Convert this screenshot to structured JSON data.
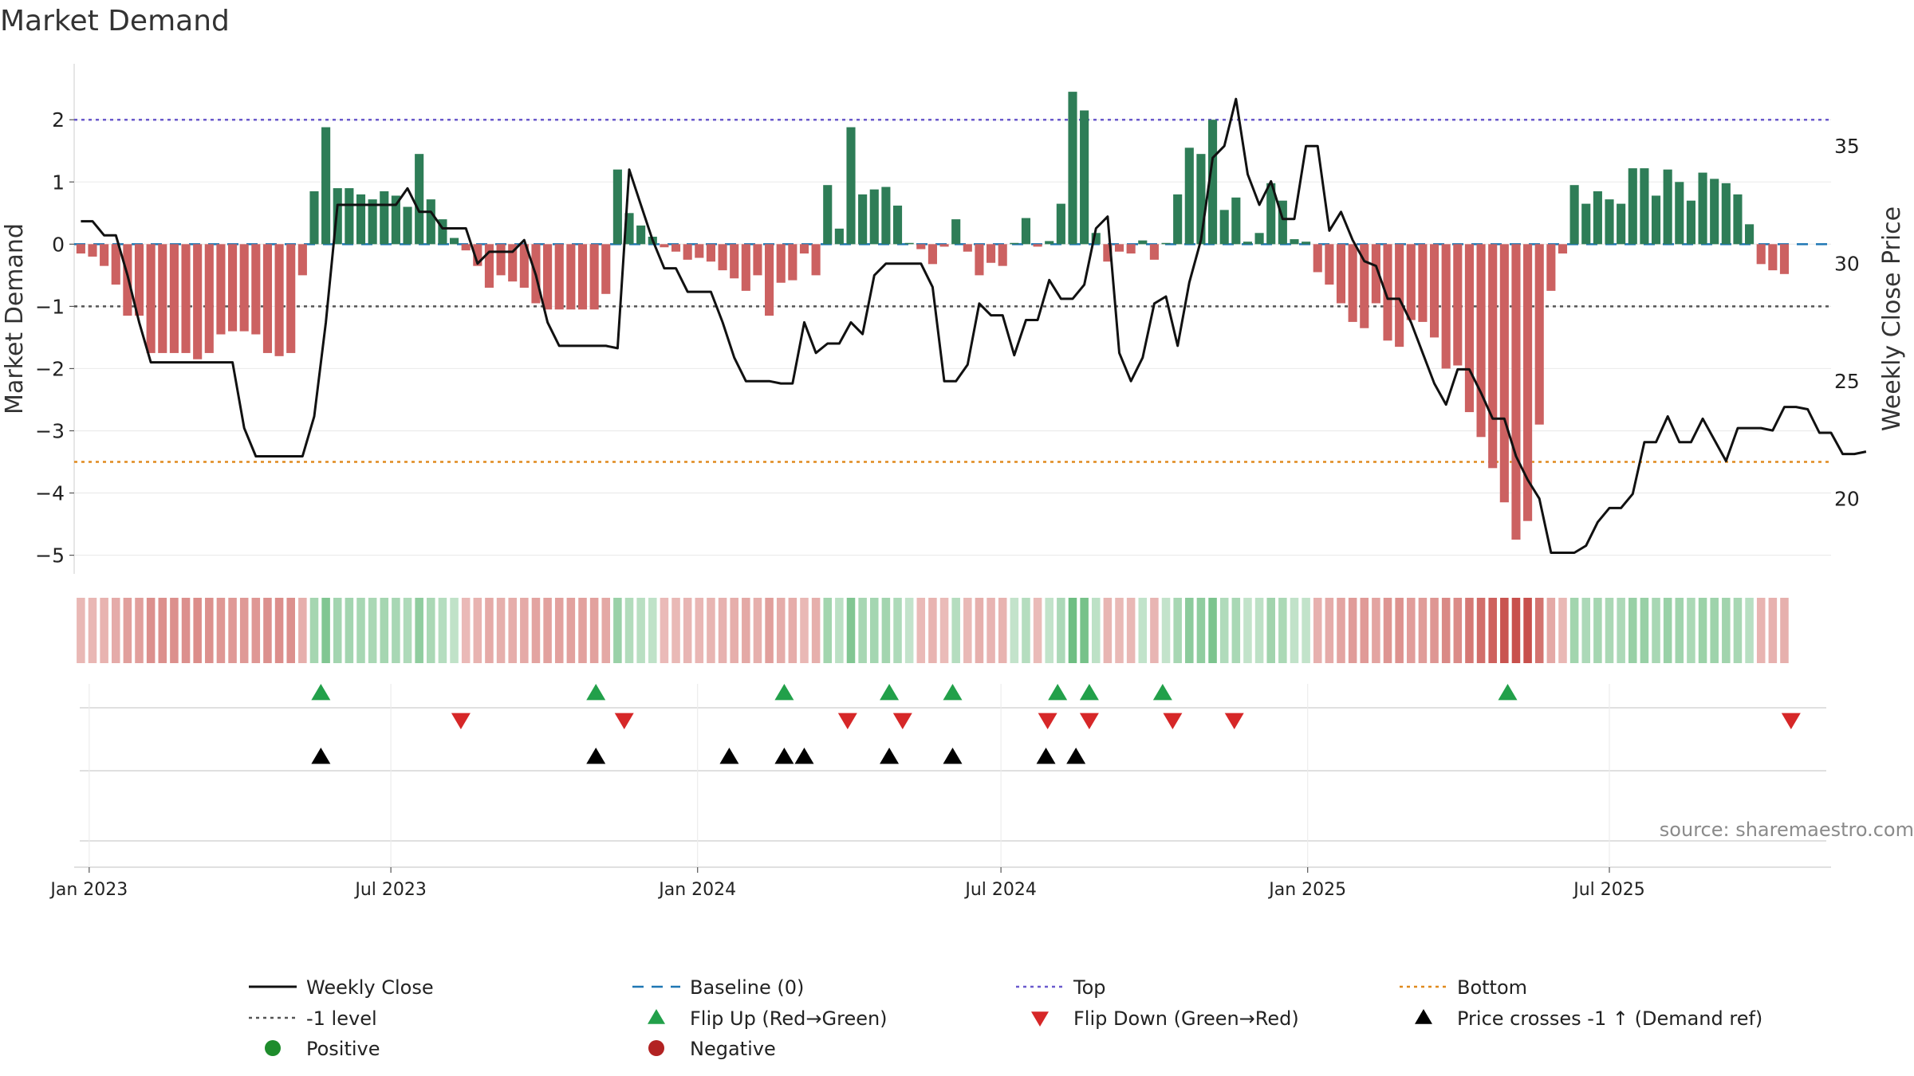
{
  "chart_data": {
    "type": "bar",
    "title": "Market Demand",
    "ylabel": "Market Demand",
    "y2label": "Weekly Close Price",
    "source": "source: sharemaestro.com",
    "ylim": [
      -5.3,
      2.9
    ],
    "y2lim": [
      16.8,
      38.5
    ],
    "yticks": [
      2,
      1,
      0,
      -1,
      -2,
      -3,
      -4,
      -5
    ],
    "ytick_labels": [
      "2",
      "1",
      "0",
      "−1",
      "−2",
      "−3",
      "−4",
      "−5"
    ],
    "y2ticks": [
      35,
      30,
      25,
      20
    ],
    "y2tick_labels": [
      "35",
      "30",
      "25",
      "20"
    ],
    "xticks": [
      {
        "date": "2023-01-01",
        "label": "Jan 2023"
      },
      {
        "date": "2023-07-01",
        "label": "Jul 2023"
      },
      {
        "date": "2024-01-01",
        "label": "Jan 2024"
      },
      {
        "date": "2024-07-01",
        "label": "Jul 2024"
      },
      {
        "date": "2025-01-01",
        "label": "Jan 2025"
      },
      {
        "date": "2025-07-01",
        "label": "Jul 2025"
      }
    ],
    "x_range": [
      "2022-12-23",
      "2025-11-11"
    ],
    "first_week": "2022-12-27",
    "reference_lines": {
      "top": 2.0,
      "bottom": -3.5,
      "minus_one_level": -1.0,
      "baseline": 0
    },
    "colors": {
      "positive": "#2e7d57",
      "negative": "#cc6161",
      "price": "#111111",
      "top": "#6a5acd",
      "bottom": "#e08a1e",
      "minus_one": "#555555",
      "baseline": "#1f77b4",
      "flip_up": "#22a04a",
      "flip_down": "#d62728",
      "price_cross": "#000000",
      "positive_dot": "#1e8c2c",
      "negative_dot": "#b22222"
    },
    "series": [
      {
        "name": "Market Demand",
        "values": [
          -0.15,
          -0.2,
          -0.35,
          -0.65,
          -1.15,
          -1.15,
          -1.75,
          -1.75,
          -1.75,
          -1.75,
          -1.85,
          -1.75,
          -1.45,
          -1.4,
          -1.4,
          -1.45,
          -1.75,
          -1.8,
          -1.75,
          -0.5,
          0.85,
          1.88,
          0.9,
          0.9,
          0.8,
          0.72,
          0.85,
          0.78,
          0.6,
          1.45,
          0.72,
          0.4,
          0.1,
          -0.1,
          -0.35,
          -0.7,
          -0.5,
          -0.6,
          -0.7,
          -0.95,
          -1.05,
          -1.05,
          -1.05,
          -1.05,
          -1.05,
          -0.8,
          1.2,
          0.5,
          0.3,
          0.12,
          -0.05,
          -0.12,
          -0.25,
          -0.22,
          -0.28,
          -0.42,
          -0.55,
          -0.75,
          -0.5,
          -1.15,
          -0.62,
          -0.58,
          -0.15,
          -0.5,
          0.95,
          0.25,
          1.88,
          0.8,
          0.88,
          0.92,
          0.62,
          0.02,
          -0.08,
          -0.32,
          -0.04,
          0.4,
          -0.12,
          -0.5,
          -0.3,
          -0.35,
          0.02,
          0.42,
          -0.04,
          0.05,
          0.65,
          2.45,
          2.15,
          0.18,
          -0.28,
          -0.12,
          -0.15,
          0.06,
          -0.25,
          0.02,
          0.8,
          1.55,
          1.45,
          2.0,
          0.55,
          0.75,
          0.04,
          0.18,
          0.98,
          0.7,
          0.08,
          0.04,
          -0.45,
          -0.65,
          -0.95,
          -1.25,
          -1.35,
          -0.95,
          -1.55,
          -1.65,
          -1.22,
          -1.25,
          -1.5,
          -2.0,
          -1.95,
          -2.7,
          -3.1,
          -3.6,
          -4.15,
          -4.75,
          -4.45,
          -2.9,
          -0.75,
          -0.15,
          0.95,
          0.65,
          0.85,
          0.72,
          0.65,
          1.22,
          1.22,
          0.78,
          1.2,
          1.0,
          0.7,
          1.15,
          1.05,
          0.98,
          0.8,
          0.32,
          -0.32,
          -0.42,
          -0.48
        ]
      },
      {
        "name": "Weekly Close",
        "axis": "right",
        "values": [
          31.8,
          31.8,
          31.2,
          31.2,
          29.5,
          27.5,
          25.8,
          25.8,
          25.8,
          25.8,
          25.8,
          25.8,
          25.8,
          25.8,
          23.0,
          21.8,
          21.8,
          21.8,
          21.8,
          21.8,
          23.5,
          27.5,
          32.5,
          32.5,
          32.5,
          32.5,
          32.5,
          32.5,
          33.2,
          32.2,
          32.2,
          31.5,
          31.5,
          31.5,
          30.0,
          30.5,
          30.5,
          30.5,
          31.0,
          29.5,
          27.5,
          26.5,
          26.5,
          26.5,
          26.5,
          26.5,
          26.4,
          34.0,
          32.5,
          31.0,
          29.8,
          29.8,
          28.8,
          28.8,
          28.8,
          27.5,
          26.0,
          25.0,
          25.0,
          25.0,
          24.9,
          24.9,
          27.5,
          26.2,
          26.6,
          26.6,
          27.5,
          27.0,
          29.5,
          30.0,
          30.0,
          30.0,
          30.0,
          29.0,
          25.0,
          25.0,
          25.7,
          28.3,
          27.8,
          27.8,
          26.1,
          27.6,
          27.6,
          29.3,
          28.5,
          28.5,
          29.1,
          31.5,
          32.0,
          26.2,
          25.0,
          26.0,
          28.3,
          28.6,
          26.5,
          29.2,
          31.0,
          34.5,
          35.0,
          37.0,
          33.8,
          32.5,
          33.5,
          31.9,
          31.9,
          35.0,
          35.0,
          31.4,
          32.2,
          31.0,
          30.1,
          29.9,
          28.5,
          28.5,
          27.5,
          26.2,
          24.9,
          24.0,
          25.5,
          25.5,
          24.5,
          23.4,
          23.4,
          21.8,
          20.8,
          20.0,
          17.7,
          17.7,
          17.7,
          18.0,
          19.0,
          19.6,
          19.6,
          20.2,
          22.4,
          22.4,
          23.5,
          22.4,
          22.4,
          23.4,
          22.5,
          21.6,
          23.0,
          23.0,
          23.0,
          22.9,
          23.9,
          23.9,
          23.8,
          22.8,
          22.8,
          21.9,
          21.9,
          22.0
        ]
      }
    ],
    "signal_rows": {
      "flip_up": [
        "2023-05-20",
        "2023-11-01",
        "2024-02-22",
        "2024-04-25",
        "2024-06-02",
        "2024-08-04",
        "2024-08-23",
        "2024-10-06",
        "2025-05-01"
      ],
      "flip_down": [
        "2023-08-12",
        "2023-11-18",
        "2024-03-31",
        "2024-05-03",
        "2024-07-29",
        "2024-08-23",
        "2024-10-12",
        "2024-11-18",
        "2025-10-18"
      ],
      "price_cross": [
        "2023-05-20",
        "2023-11-01",
        "2024-01-20",
        "2024-02-22",
        "2024-03-05",
        "2024-04-25",
        "2024-06-02",
        "2024-07-28",
        "2024-08-15"
      ]
    },
    "legend": [
      {
        "label": "Weekly Close",
        "marker": "solid"
      },
      {
        "label": "Baseline (0)",
        "marker": "dashed"
      },
      {
        "label": "Top",
        "marker": "dotted-top"
      },
      {
        "label": "Bottom",
        "marker": "dotted-bottom"
      },
      {
        "label": "-1 level",
        "marker": "dotted-minus1"
      },
      {
        "label": "Flip Up (Red→Green)",
        "marker": "tri-up"
      },
      {
        "label": "Flip Down (Green→Red)",
        "marker": "tri-down"
      },
      {
        "label": "Price crosses -1 ↑ (Demand ref)",
        "marker": "tri-black"
      },
      {
        "label": "Positive",
        "marker": "dot-positive"
      },
      {
        "label": "Negative",
        "marker": "dot-negative"
      }
    ]
  }
}
